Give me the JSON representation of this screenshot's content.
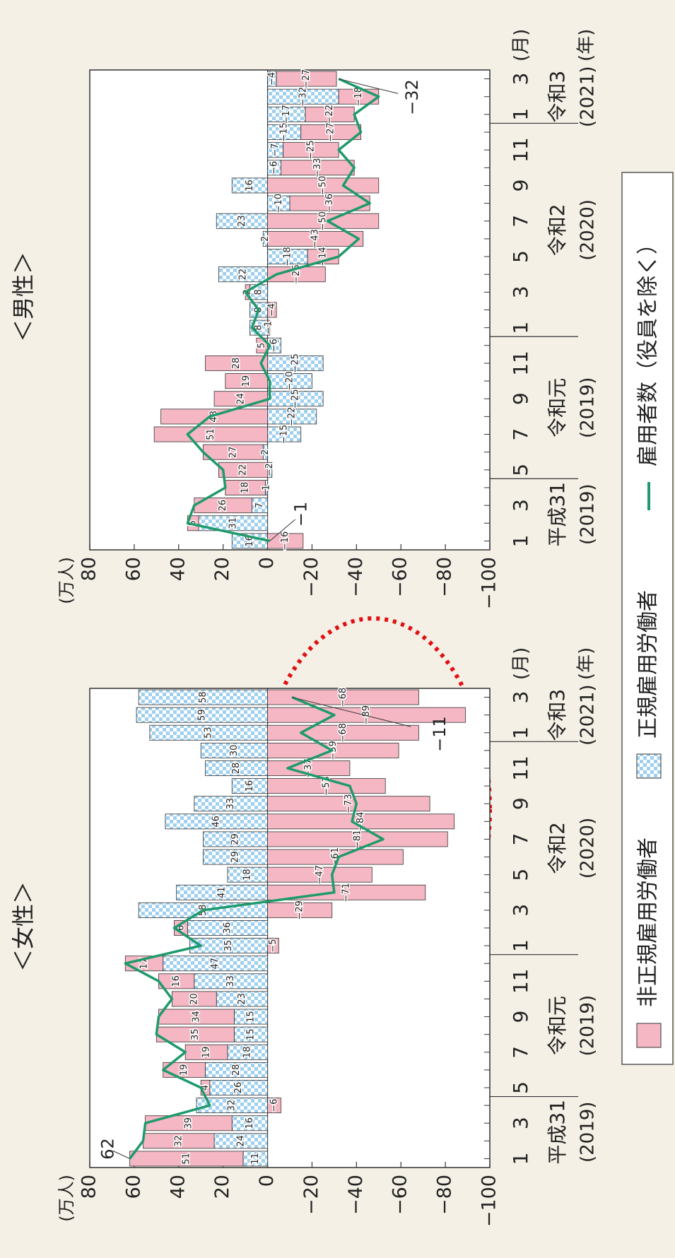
{
  "chart_data": [
    {
      "type": "bar",
      "title": "＜女性＞",
      "y_unit": "(万人)",
      "x_unit": "(月)",
      "group_unit": "(年)",
      "stacked": true,
      "categories": [
        "1",
        null,
        "3",
        null,
        "5",
        null,
        "7",
        null,
        "9",
        null,
        "11",
        null,
        "1",
        null,
        "3",
        null,
        "5",
        null,
        "7",
        null,
        "9",
        null,
        "11",
        null,
        "1",
        null,
        "3"
      ],
      "groups": [
        {
          "label": "平成31",
          "sub": "(2019)",
          "count": 4
        },
        {
          "label": "令和元",
          "sub": "(2019)",
          "count": 8
        },
        {
          "label": "令和2",
          "sub": "(2020)",
          "count": 12
        },
        {
          "label": "令和3",
          "sub": "(2021)",
          "count": 3
        }
      ],
      "ylim": [
        -100,
        80
      ],
      "yticks": [
        80,
        60,
        40,
        20,
        0,
        {
          "value": -20,
          "label": "−20"
        },
        {
          "value": -40,
          "label": "−40"
        },
        {
          "value": -60,
          "label": "−60"
        },
        {
          "value": -80,
          "label": "−80"
        },
        {
          "value": -100,
          "label": "−100"
        }
      ],
      "series": [
        {
          "name": "非正規雇用労働者",
          "type": "bar",
          "color": "#f5b7c3",
          "values": [
            51,
            32,
            39,
            -6,
            4,
            19,
            19,
            35,
            34,
            20,
            16,
            17,
            -5,
            6,
            -29,
            -71,
            -47,
            -61,
            -81,
            -84,
            -73,
            -53,
            -37,
            -59,
            -68,
            -89,
            -68
          ],
          "value_labels": [
            "51",
            "32",
            "39",
            "−6",
            "4",
            "19",
            "19",
            "35",
            "34",
            "20",
            "16",
            "17",
            "−5",
            "6",
            "−29",
            "−71",
            "−47",
            "−61",
            "−81",
            "−84",
            "−73",
            "−53",
            "−37",
            "−59",
            "−68",
            "−89",
            "−68"
          ]
        },
        {
          "name": "正規雇用労働者",
          "type": "bar",
          "color": "#9fd0ef",
          "values": [
            11,
            24,
            16,
            32,
            26,
            28,
            18,
            15,
            15,
            23,
            33,
            47,
            35,
            36,
            58,
            41,
            18,
            29,
            29,
            46,
            33,
            16,
            28,
            30,
            53,
            59,
            58
          ]
        },
        {
          "name": "雇用者数（役員を除く）",
          "type": "line",
          "color": "#1f9a6c",
          "values": [
            62,
            56,
            55,
            26,
            30,
            47,
            37,
            50,
            49,
            43,
            49,
            64,
            30,
            42,
            29,
            -30,
            -29,
            -32,
            -52,
            -38,
            -40,
            -37,
            -9,
            -29,
            -15,
            -30,
            -11
          ],
          "value_labels": [
            "62",
            null,
            null,
            null,
            null,
            null,
            null,
            null,
            null,
            null,
            null,
            null,
            null,
            null,
            null,
            null,
            null,
            null,
            null,
            null,
            null,
            null,
            null,
            null,
            null,
            null,
            "−11"
          ]
        }
      ]
    },
    {
      "type": "bar",
      "title": "＜男性＞",
      "y_unit": "(万人)",
      "x_unit": "(月)",
      "group_unit": "(年)",
      "stacked": true,
      "categories": [
        "1",
        null,
        "3",
        null,
        "5",
        null,
        "7",
        null,
        "9",
        null,
        "11",
        null,
        "1",
        null,
        "3",
        null,
        "5",
        null,
        "7",
        null,
        "9",
        null,
        "11",
        null,
        "1",
        null,
        "3"
      ],
      "groups": [
        {
          "label": "平成31",
          "sub": "(2019)",
          "count": 4
        },
        {
          "label": "令和元",
          "sub": "(2019)",
          "count": 8
        },
        {
          "label": "令和2",
          "sub": "(2020)",
          "count": 12
        },
        {
          "label": "令和3",
          "sub": "(2021)",
          "count": 3
        }
      ],
      "ylim": [
        -100,
        80
      ],
      "yticks": [
        80,
        60,
        40,
        20,
        0,
        {
          "value": -20,
          "label": "−20"
        },
        {
          "value": -40,
          "label": "−40"
        },
        {
          "value": -60,
          "label": "−60"
        },
        {
          "value": -80,
          "label": "−80"
        },
        {
          "value": -100,
          "label": "−100"
        }
      ],
      "series": [
        {
          "type": "bar",
          "color": "#f5b7c3",
          "values": [
            -16,
            5,
            26,
            18,
            22,
            27,
            51,
            48,
            24,
            19,
            28,
            5,
            -1,
            -4,
            2,
            -26,
            -14,
            -43,
            -50,
            -36,
            -50,
            -33,
            -25,
            -27,
            -22,
            -18,
            -27
          ],
          "value_labels": [
            "−16",
            "5",
            "26",
            "18",
            "22",
            "27",
            "51",
            "48",
            "24",
            "19",
            "28",
            "5",
            "−1",
            "−4",
            "2",
            "−26",
            "−14",
            "−43",
            "−50",
            "−36",
            "−50",
            "−33",
            "−25",
            "−27",
            "−22",
            "−18",
            "−27"
          ]
        },
        {
          "type": "bar",
          "color": "#9fd0ef",
          "values": [
            16,
            31,
            7,
            1,
            -2,
            2,
            -15,
            -22,
            -25,
            -20,
            -25,
            -6,
            8,
            8,
            8,
            22,
            -18,
            2,
            23,
            -10,
            16,
            -6,
            -7,
            -15,
            -17,
            -32,
            -4
          ],
          "value_labels": [
            "16",
            "31",
            "7",
            "1",
            "−2",
            "2",
            "−15",
            "−22",
            "−25",
            "−20",
            "−25",
            "−6",
            "8",
            "8",
            "8",
            "22",
            "−18",
            "2",
            "23",
            "−10",
            "16",
            "−6",
            "−7",
            "−15",
            "−17",
            "−32",
            "−4"
          ]
        },
        {
          "type": "line",
          "color": "#1f9a6c",
          "values": [
            -1,
            36,
            33,
            19,
            20,
            29,
            36,
            26,
            -1,
            -1,
            3,
            -1,
            7,
            4,
            10,
            -4,
            -32,
            -41,
            -27,
            -46,
            -34,
            -39,
            -32,
            -42,
            -39,
            -50,
            -32
          ],
          "value_labels": [
            "−1",
            null,
            null,
            null,
            null,
            null,
            null,
            null,
            null,
            null,
            null,
            null,
            null,
            null,
            null,
            null,
            null,
            null,
            null,
            null,
            null,
            null,
            null,
            null,
            null,
            null,
            "−32"
          ]
        }
      ]
    }
  ]
}
